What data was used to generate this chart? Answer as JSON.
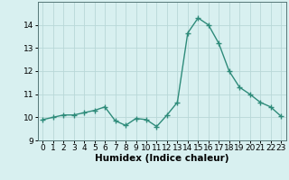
{
  "x": [
    0,
    1,
    2,
    3,
    4,
    5,
    6,
    7,
    8,
    9,
    10,
    11,
    12,
    13,
    14,
    15,
    16,
    17,
    18,
    19,
    20,
    21,
    22,
    23
  ],
  "y": [
    9.9,
    10.0,
    10.1,
    10.1,
    10.2,
    10.3,
    10.45,
    9.85,
    9.65,
    9.95,
    9.9,
    9.6,
    10.1,
    10.65,
    13.65,
    14.3,
    14.0,
    13.2,
    12.0,
    11.3,
    11.0,
    10.65,
    10.45,
    10.05
  ],
  "xlabel": "Humidex (Indice chaleur)",
  "ylim": [
    9,
    15
  ],
  "xlim": [
    -0.5,
    23.5
  ],
  "yticks": [
    9,
    10,
    11,
    12,
    13,
    14
  ],
  "xticks": [
    0,
    1,
    2,
    3,
    4,
    5,
    6,
    7,
    8,
    9,
    10,
    11,
    12,
    13,
    14,
    15,
    16,
    17,
    18,
    19,
    20,
    21,
    22,
    23
  ],
  "line_color": "#2e8b7a",
  "marker": "+",
  "bg_color": "#d8f0f0",
  "grid_color": "#b8d8d8",
  "xlabel_fontsize": 7.5,
  "tick_fontsize": 6.5,
  "linewidth": 1.0,
  "markersize": 4,
  "markeredgewidth": 1.0
}
